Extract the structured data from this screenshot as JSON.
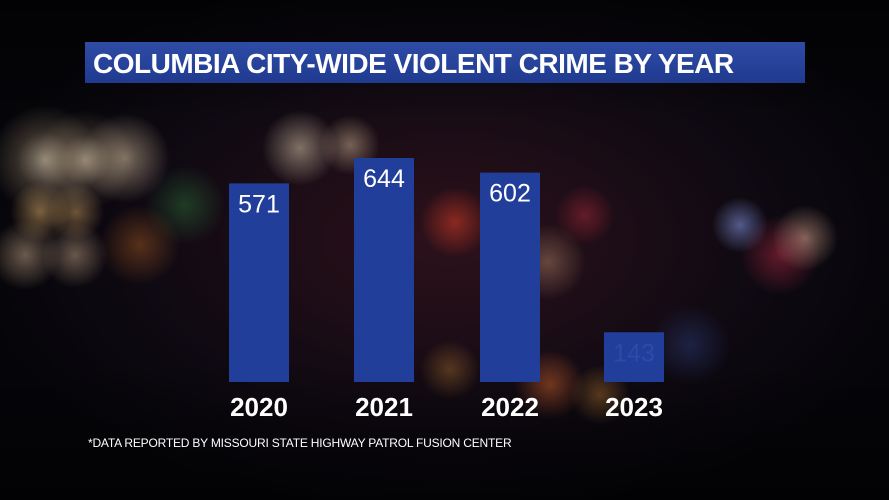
{
  "title": "COLUMBIA CITY-WIDE VIOLENT CRIME BY YEAR",
  "footnote": "*DATA REPORTED BY MISSOURI STATE HIGHWAY PATROL FUSION CENTER",
  "colors": {
    "bar": "#213f9a",
    "title_bar": "#2a469f",
    "label": "#ffffff",
    "faded_label": "#2c4aa8"
  },
  "chart_data": {
    "type": "bar",
    "title": "COLUMBIA CITY-WIDE VIOLENT CRIME BY YEAR",
    "categories": [
      "2020",
      "2021",
      "2022",
      "2023"
    ],
    "values": [
      571,
      644,
      602,
      143
    ],
    "data_labels": [
      "571",
      "644",
      "602",
      "143"
    ],
    "xlabel": "",
    "ylabel": "",
    "ylim": [
      0,
      720
    ],
    "grid": false,
    "legend": "none"
  }
}
